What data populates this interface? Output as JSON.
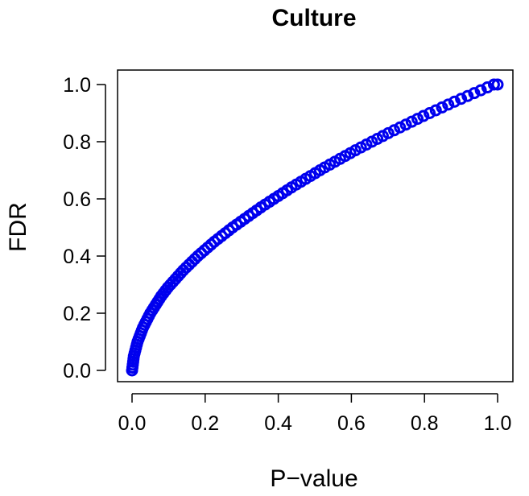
{
  "chart_data": {
    "type": "scatter",
    "title": "Culture",
    "xlabel": "P−value",
    "ylabel": "FDR",
    "xlim": [
      0,
      1
    ],
    "ylim": [
      0,
      1
    ],
    "x_ticks": [
      "0.0",
      "0.2",
      "0.4",
      "0.6",
      "0.8",
      "1.0"
    ],
    "y_ticks": [
      "0.0",
      "0.2",
      "0.4",
      "0.6",
      "0.8",
      "1.0"
    ],
    "grid": false,
    "legend": "none",
    "marker": "open-circle",
    "series": [
      {
        "color": "#0000ee",
        "points": [
          [
            0.0,
            0.0
          ],
          [
            0.001,
            0.01
          ],
          [
            0.002,
            0.02
          ],
          [
            0.003,
            0.03
          ],
          [
            0.004,
            0.04
          ],
          [
            0.005,
            0.05
          ],
          [
            0.007,
            0.06
          ],
          [
            0.009,
            0.07
          ],
          [
            0.011,
            0.08
          ],
          [
            0.013,
            0.09
          ],
          [
            0.015,
            0.1
          ],
          [
            0.018,
            0.11
          ],
          [
            0.021,
            0.12
          ],
          [
            0.024,
            0.13
          ],
          [
            0.027,
            0.14
          ],
          [
            0.03,
            0.15
          ],
          [
            0.034,
            0.16
          ],
          [
            0.038,
            0.17
          ],
          [
            0.042,
            0.18
          ],
          [
            0.046,
            0.19
          ],
          [
            0.05,
            0.2
          ],
          [
            0.055,
            0.21
          ],
          [
            0.06,
            0.22
          ],
          [
            0.065,
            0.23
          ],
          [
            0.07,
            0.24
          ],
          [
            0.075,
            0.25
          ],
          [
            0.08,
            0.26
          ],
          [
            0.086,
            0.27
          ],
          [
            0.092,
            0.28
          ],
          [
            0.098,
            0.29
          ],
          [
            0.105,
            0.3
          ],
          [
            0.112,
            0.31
          ],
          [
            0.119,
            0.32
          ],
          [
            0.126,
            0.33
          ],
          [
            0.133,
            0.34
          ],
          [
            0.14,
            0.35
          ],
          [
            0.148,
            0.36
          ],
          [
            0.156,
            0.37
          ],
          [
            0.164,
            0.38
          ],
          [
            0.172,
            0.39
          ],
          [
            0.18,
            0.4
          ],
          [
            0.189,
            0.41
          ],
          [
            0.198,
            0.42
          ],
          [
            0.207,
            0.43
          ],
          [
            0.216,
            0.44
          ],
          [
            0.225,
            0.45
          ],
          [
            0.235,
            0.46
          ],
          [
            0.245,
            0.47
          ],
          [
            0.255,
            0.48
          ],
          [
            0.265,
            0.49
          ],
          [
            0.275,
            0.5
          ],
          [
            0.286,
            0.51
          ],
          [
            0.297,
            0.52
          ],
          [
            0.308,
            0.53
          ],
          [
            0.319,
            0.54
          ],
          [
            0.33,
            0.55
          ],
          [
            0.341,
            0.56
          ],
          [
            0.352,
            0.57
          ],
          [
            0.364,
            0.58
          ],
          [
            0.376,
            0.59
          ],
          [
            0.388,
            0.6
          ],
          [
            0.4,
            0.61
          ],
          [
            0.412,
            0.62
          ],
          [
            0.424,
            0.63
          ],
          [
            0.436,
            0.64
          ],
          [
            0.449,
            0.65
          ],
          [
            0.462,
            0.66
          ],
          [
            0.475,
            0.67
          ],
          [
            0.488,
            0.68
          ],
          [
            0.501,
            0.69
          ],
          [
            0.514,
            0.7
          ],
          [
            0.527,
            0.71
          ],
          [
            0.541,
            0.72
          ],
          [
            0.555,
            0.73
          ],
          [
            0.569,
            0.74
          ],
          [
            0.583,
            0.75
          ],
          [
            0.597,
            0.76
          ],
          [
            0.611,
            0.77
          ],
          [
            0.626,
            0.78
          ],
          [
            0.641,
            0.79
          ],
          [
            0.656,
            0.8
          ],
          [
            0.671,
            0.81
          ],
          [
            0.686,
            0.82
          ],
          [
            0.701,
            0.83
          ],
          [
            0.717,
            0.84
          ],
          [
            0.733,
            0.85
          ],
          [
            0.749,
            0.86
          ],
          [
            0.765,
            0.87
          ],
          [
            0.781,
            0.88
          ],
          [
            0.797,
            0.89
          ],
          [
            0.814,
            0.9
          ],
          [
            0.831,
            0.91
          ],
          [
            0.848,
            0.92
          ],
          [
            0.865,
            0.93
          ],
          [
            0.882,
            0.94
          ],
          [
            0.9,
            0.95
          ],
          [
            0.918,
            0.96
          ],
          [
            0.936,
            0.97
          ],
          [
            0.954,
            0.98
          ],
          [
            0.972,
            0.99
          ],
          [
            0.99,
            1.0
          ],
          [
            1.0,
            1.0
          ]
        ]
      }
    ]
  }
}
